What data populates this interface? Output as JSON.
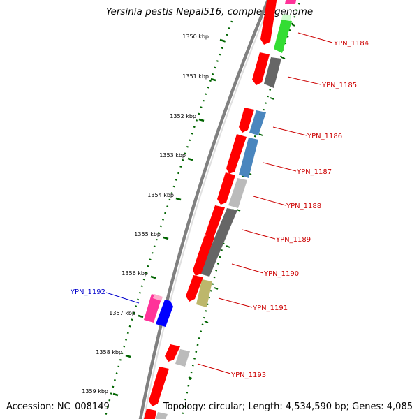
{
  "title": "Yersinia pestis Nepal516, complete genome",
  "accession": "Accession: NC_008149",
  "topology": "Topology: circular; Length: 4,534,590 bp; Genes: 4,085",
  "ticks": [
    {
      "label": "1350 kbp",
      "pos": 1350
    },
    {
      "label": "1351 kbp",
      "pos": 1351
    },
    {
      "label": "1352 kbp",
      "pos": 1352
    },
    {
      "label": "1353 kbp",
      "pos": 1353
    },
    {
      "label": "1354 kbp",
      "pos": 1354
    },
    {
      "label": "1355 kbp",
      "pos": 1355
    },
    {
      "label": "1356 kbp",
      "pos": 1356
    },
    {
      "label": "1357 kbp",
      "pos": 1357
    },
    {
      "label": "1358 kbp",
      "pos": 1358
    },
    {
      "label": "1359 kbp",
      "pos": 1359
    }
  ],
  "gene_labels": [
    {
      "name": "YPN_1184",
      "color": "#cc0000"
    },
    {
      "name": "YPN_1185",
      "color": "#cc0000"
    },
    {
      "name": "YPN_1186",
      "color": "#cc0000"
    },
    {
      "name": "YPN_1187",
      "color": "#cc0000"
    },
    {
      "name": "YPN_1188",
      "color": "#cc0000"
    },
    {
      "name": "YPN_1189",
      "color": "#cc0000"
    },
    {
      "name": "YPN_1190",
      "color": "#cc0000"
    },
    {
      "name": "YPN_1191",
      "color": "#cc0000"
    },
    {
      "name": "YPN_1192",
      "color": "#0000cc"
    },
    {
      "name": "YPN_1193",
      "color": "#cc0000"
    }
  ],
  "colors": {
    "backbone": "#808080",
    "tick": "#006400",
    "cds": "#ff0000",
    "green": "#33dd33",
    "gray_dark": "#666666",
    "gray_light": "#bbbbbb",
    "blue_light": "#4a86be",
    "olive": "#bdb76b",
    "pink": "#ff3399",
    "blue": "#0000ff"
  }
}
